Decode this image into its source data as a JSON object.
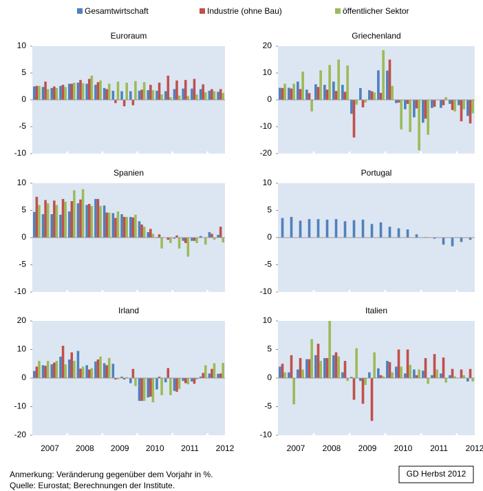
{
  "legend": [
    {
      "name": "Gesamtwirtschaft",
      "color": "#4f81bd"
    },
    {
      "name": "Industrie (ohne Bau)",
      "color": "#c0504d"
    },
    {
      "name": "öffentlicher Sektor",
      "color": "#9bbb59"
    }
  ],
  "year_labels": [
    "2007",
    "2008",
    "2009",
    "2010",
    "2011",
    "2012"
  ],
  "notes": [
    "Anmerkung: Veränderung gegenüber dem Vorjahr in %.",
    "Quelle: Eurostat; Berechnungen der Institute."
  ],
  "badge": "GD Herbst 2012",
  "chart_data": [
    {
      "type": "bar",
      "title": "Euroraum",
      "ylim": [
        -10,
        10
      ],
      "yticks": [
        -10,
        -5,
        0,
        5,
        10
      ],
      "series": [
        {
          "name": "Gesamtwirtschaft",
          "color": "#4f81bd",
          "values": [
            2.5,
            2.4,
            2.2,
            2.6,
            3.0,
            3.2,
            3.0,
            2.8,
            2.2,
            1.7,
            1.6,
            1.6,
            1.7,
            1.8,
            1.7,
            1.6,
            2.0,
            2.1,
            2.1,
            2.0,
            1.7,
            1.5
          ]
        },
        {
          "name": "Industrie (ohne Bau)",
          "color": "#c0504d",
          "values": [
            2.6,
            3.4,
            2.5,
            2.8,
            3.0,
            3.7,
            3.9,
            3.3,
            2.0,
            -0.6,
            -1.2,
            -1.0,
            1.9,
            2.8,
            3.2,
            4.5,
            3.6,
            3.7,
            3.9,
            2.9,
            2.0,
            2.0
          ]
        },
        {
          "name": "öffentlicher Sektor",
          "color": "#9bbb59",
          "values": [
            2.6,
            2.0,
            2.2,
            2.4,
            3.2,
            3.1,
            4.5,
            3.6,
            3.0,
            3.4,
            3.2,
            3.5,
            3.3,
            1.8,
            1.0,
            0.5,
            0.8,
            0.7,
            1.0,
            1.4,
            1.6,
            1.3
          ]
        }
      ]
    },
    {
      "type": "bar",
      "title": "Griechenland",
      "ylim": [
        -20,
        20
      ],
      "yticks": [
        -20,
        -10,
        0,
        10,
        20
      ],
      "series": [
        {
          "name": "Gesamtwirtschaft",
          "color": "#4f81bd",
          "values": [
            4.5,
            4.5,
            6.8,
            3.8,
            5.8,
            5.6,
            6.8,
            5.6,
            -5.2,
            4.4,
            3.6,
            11,
            10.9,
            -1.2,
            -3.5,
            -6.5,
            -8.5,
            -3,
            -3,
            -1.5,
            -2,
            -6
          ]
        },
        {
          "name": "Industrie (ohne Bau)",
          "color": "#c0504d",
          "values": [
            4.4,
            4.2,
            4.0,
            2.5,
            4.8,
            3.8,
            3.3,
            3.0,
            -14,
            -2.8,
            3.2,
            2.6,
            15,
            -1,
            -1.5,
            -3.2,
            -7,
            -2.6,
            -2,
            -3.8,
            -8,
            -8.8
          ]
        },
        {
          "name": "öffentlicher Sektor",
          "color": "#9bbb59",
          "values": [
            6,
            6,
            10.5,
            -4.3,
            11,
            13,
            15,
            12.8,
            -1.8,
            -1,
            2.8,
            18.5,
            5.2,
            -11,
            -12,
            -18.8,
            -13,
            0,
            1,
            -4.3,
            -3.5,
            -5
          ]
        }
      ]
    },
    {
      "type": "bar",
      "title": "Spanien",
      "ylim": [
        -10,
        10
      ],
      "yticks": [
        -10,
        -5,
        0,
        5,
        10
      ],
      "series": [
        {
          "name": "Gesamtwirtschaft",
          "color": "#4f81bd",
          "values": [
            4.7,
            4.3,
            4.3,
            4.2,
            4.8,
            6.3,
            6.0,
            7.1,
            5.9,
            4.5,
            4.3,
            3.8,
            3.0,
            1.0,
            0.1,
            0.0,
            -0.2,
            -0.6,
            -0.6,
            0.3,
            1.0,
            0.5
          ]
        },
        {
          "name": "Industrie (ohne Bau)",
          "color": "#c0504d",
          "values": [
            7.5,
            6.9,
            6.8,
            7.1,
            6.7,
            7.0,
            6.2,
            7.1,
            4.6,
            3.6,
            3.8,
            3.7,
            2.4,
            1.6,
            0.6,
            -0.4,
            0.4,
            -1.0,
            -0.6,
            0.0,
            0.7,
            2.0
          ]
        },
        {
          "name": "öffentlicher Sektor",
          "color": "#9bbb59",
          "values": [
            6.0,
            6.3,
            6.0,
            6.6,
            8.7,
            8.9,
            5.8,
            5.8,
            4.6,
            4.8,
            3.8,
            4.2,
            2.0,
            0.7,
            -2.0,
            -1.0,
            -2.0,
            -3.5,
            -1.0,
            -1.3,
            -0.4,
            -0.9
          ]
        }
      ]
    },
    {
      "type": "bar",
      "title": "Portugal",
      "ylim": [
        -10,
        10
      ],
      "yticks": [
        -10,
        -5,
        0,
        5,
        10
      ],
      "series": [
        {
          "name": "Gesamtwirtschaft",
          "color": "#4f81bd",
          "values": [
            3.6,
            3.8,
            3.1,
            3.4,
            3.4,
            3.3,
            3.4,
            3.0,
            3.2,
            3.3,
            2.5,
            2.8,
            2.0,
            1.7,
            1.5,
            0.6,
            0.1,
            -0.2,
            -1.3,
            -1.6,
            -0.8,
            -0.4
          ]
        }
      ]
    },
    {
      "type": "bar",
      "title": "Irland",
      "ylim": [
        -20,
        20
      ],
      "yticks": [
        -20,
        -10,
        0,
        10,
        20
      ],
      "series": [
        {
          "name": "Gesamtwirtschaft",
          "color": "#4f81bd",
          "values": [
            2.5,
            4.5,
            4.8,
            7.5,
            6.5,
            9.5,
            4.5,
            5.8,
            5.2,
            5.0,
            0.5,
            -1.8,
            -8.0,
            -6.8,
            -4.0,
            -1.5,
            -4.5,
            -1.0,
            -1.2,
            0.5,
            1.6,
            1.5
          ]
        },
        {
          "name": "Industrie (ohne Bau)",
          "color": "#c0504d",
          "values": [
            4.0,
            4.3,
            5.4,
            11.3,
            9.0,
            3.3,
            3.0,
            6.5,
            4.5,
            -0.5,
            -0.5,
            3.2,
            -8.0,
            -6.5,
            0.5,
            3.5,
            -4.8,
            -1.8,
            -2.0,
            1.8,
            3.2,
            1.6
          ]
        },
        {
          "name": "öffentlicher Sektor",
          "color": "#9bbb59",
          "values": [
            6.0,
            6.0,
            6.0,
            4.8,
            6.0,
            4.0,
            3.5,
            7.5,
            7.0,
            -0.4,
            0.3,
            -2.8,
            -8.0,
            -8.5,
            -6.0,
            -6.0,
            -3.8,
            -2.2,
            -0.5,
            4.5,
            5.2,
            5.3
          ]
        }
      ]
    },
    {
      "type": "bar",
      "title": "Italien",
      "ylim": [
        -10,
        10
      ],
      "yticks": [
        -10,
        -5,
        0,
        5,
        10
      ],
      "series": [
        {
          "name": "Gesamtwirtschaft",
          "color": "#4f81bd",
          "values": [
            2.0,
            1.0,
            1.5,
            3.3,
            4.0,
            3.5,
            4.0,
            1.0,
            0.2,
            -0.5,
            1.0,
            1.7,
            3.0,
            2.0,
            0.8,
            1.5,
            1.3,
            0.5,
            0.8,
            0.5,
            0.0,
            -0.6
          ]
        },
        {
          "name": "Industrie (ohne Bau)",
          "color": "#c0504d",
          "values": [
            2.5,
            4.0,
            3.5,
            3.3,
            6.0,
            3.5,
            4.5,
            3.0,
            -3.8,
            -4.5,
            -7.5,
            0.5,
            2.8,
            5.0,
            5.0,
            0.5,
            3.5,
            4.2,
            3.6,
            1.6,
            1.5,
            1.6
          ]
        },
        {
          "name": "öffentlicher Sektor",
          "color": "#9bbb59",
          "values": [
            1.0,
            -4.6,
            1.5,
            6.8,
            3.0,
            10.0,
            3.8,
            -0.5,
            5.2,
            -1.2,
            4.5,
            0.3,
            1.0,
            2.0,
            2.3,
            1.5,
            -1.0,
            1.5,
            -0.8,
            0.3,
            0.5,
            -0.6
          ]
        }
      ]
    }
  ]
}
